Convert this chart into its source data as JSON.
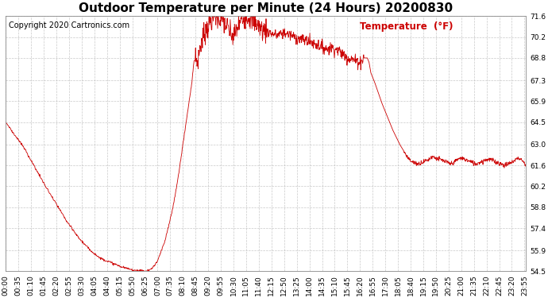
{
  "title": "Outdoor Temperature per Minute (24 Hours) 20200830",
  "copyright_text": "Copyright 2020 Cartronics.com",
  "legend_label": "Temperature  (°F)",
  "legend_color": "#cc0000",
  "line_color": "#cc0000",
  "background_color": "#ffffff",
  "grid_color": "#bbbbbb",
  "yticks": [
    54.5,
    55.9,
    57.4,
    58.8,
    60.2,
    61.6,
    63.0,
    64.5,
    65.9,
    67.3,
    68.8,
    70.2,
    71.6
  ],
  "ylim": [
    54.5,
    71.6
  ],
  "xtick_interval_minutes": 35,
  "total_minutes": 1440,
  "title_fontsize": 11,
  "tick_fontsize": 6.5,
  "copyright_fontsize": 7,
  "legend_fontsize": 8.5
}
